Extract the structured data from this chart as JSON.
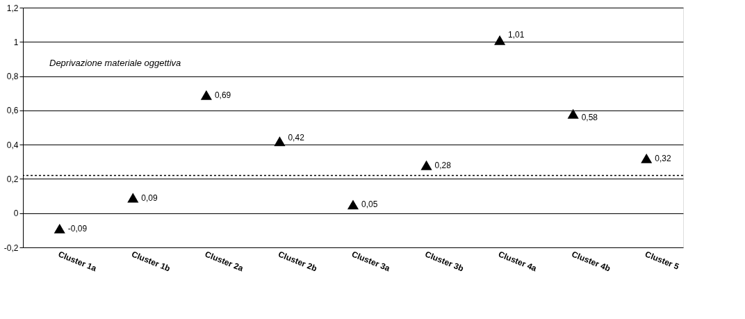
{
  "chart_data": {
    "type": "scatter",
    "categories": [
      "Cluster 1a",
      "Cluster 1b",
      "Cluster 2a",
      "Cluster 2b",
      "Cluster 3a",
      "Cluster 3b",
      "Cluster 4a",
      "Cluster 4b",
      "Cluster 5"
    ],
    "series": [
      {
        "color": "#000000",
        "values": [
          -0.09,
          0.09,
          0.69,
          0.42,
          0.05,
          0.28,
          1.01,
          0.58,
          0.32
        ],
        "value_labels": [
          "-0,09",
          "0,09",
          "0,69",
          "0,42",
          "0,05",
          "0,28",
          "1,01",
          "0,58",
          "0,32"
        ]
      }
    ],
    "marker": "triangle",
    "ylim": [
      -0.2,
      1.2
    ],
    "yticks": [
      {
        "value": -0.2,
        "label": "-0,2"
      },
      {
        "value": 0,
        "label": "0"
      },
      {
        "value": 0.2,
        "label": "0,2"
      },
      {
        "value": 0.4,
        "label": "0,4"
      },
      {
        "value": 0.6,
        "label": "0,6"
      },
      {
        "value": 0.8,
        "label": "0,8"
      },
      {
        "value": 1,
        "label": "1"
      },
      {
        "value": 1.2,
        "label": "1,2"
      }
    ],
    "grid": "y",
    "ref_lines": [
      {
        "axis": "y",
        "value": 0.22,
        "color": "#000000",
        "line_style": "dotted"
      }
    ],
    "annotations": [
      "Deprivazione materiale oggettiva"
    ]
  }
}
